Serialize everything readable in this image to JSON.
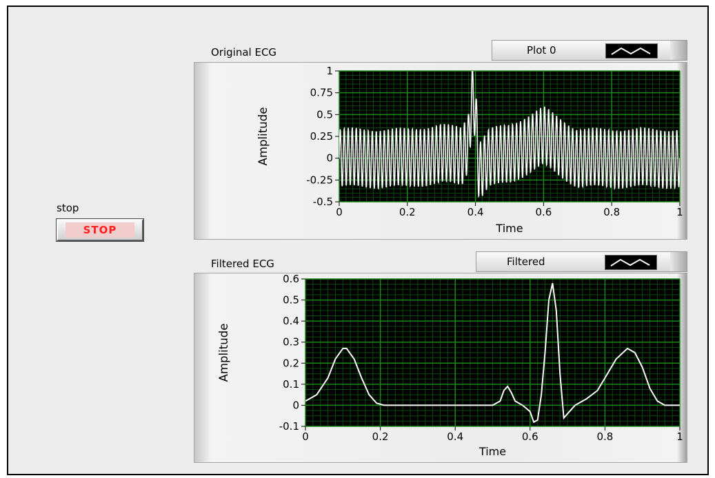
{
  "stop": {
    "label": "stop",
    "button_text": "STOP"
  },
  "charts": [
    {
      "title": "Original ECG",
      "legend": "Plot 0"
    },
    {
      "title": "Filtered ECG",
      "legend": "Filtered"
    }
  ],
  "colors": {
    "plot_background": "#000000",
    "grid_major": "#1a8a1a",
    "grid_minor": "#0d4a0d",
    "trace": "#ffffff",
    "stop_text": "#ff2020"
  },
  "chart_data": [
    {
      "type": "line",
      "title": "Original ECG",
      "xlabel": "Time",
      "ylabel": "Amplitude",
      "xlim": [
        0,
        1
      ],
      "ylim": [
        -0.5,
        1
      ],
      "x_ticks": [
        "0",
        "0.2",
        "0.4",
        "0.6",
        "0.8",
        "1"
      ],
      "y_ticks": [
        "1",
        "0.75",
        "0.5",
        "0.25",
        "0",
        "-0.25",
        "-0.5"
      ],
      "grid": true,
      "series": [
        {
          "name": "Plot 0",
          "description_points": {
            "x": [
              0,
              0.1,
              0.2,
              0.3,
              0.36,
              0.38,
              0.39,
              0.4,
              0.41,
              0.44,
              0.5,
              0.55,
              0.6,
              0.65,
              0.7,
              0.8,
              0.9,
              1.0
            ],
            "y": [
              0,
              0.0,
              0.0,
              0.05,
              0.02,
              0.2,
              0.75,
              0.55,
              -0.15,
              0.0,
              0.05,
              0.15,
              0.25,
              0.12,
              0.0,
              0.0,
              0.0,
              0.0
            ]
          },
          "noise_amplitude": 0.33,
          "noise_cycles": 85
        }
      ]
    },
    {
      "type": "line",
      "title": "Filtered ECG",
      "xlabel": "Time",
      "ylabel": "Amplitude",
      "xlim": [
        0,
        1
      ],
      "ylim": [
        -0.1,
        0.6
      ],
      "x_ticks": [
        "0",
        "0.2",
        "0.4",
        "0.6",
        "0.8",
        "1"
      ],
      "y_ticks": [
        "0.6",
        "0.5",
        "0.4",
        "0.3",
        "0.2",
        "0.1",
        "0",
        "-0.1"
      ],
      "grid": true,
      "series": [
        {
          "name": "Filtered",
          "x": [
            0,
            0.03,
            0.06,
            0.08,
            0.1,
            0.11,
            0.13,
            0.15,
            0.17,
            0.19,
            0.21,
            0.25,
            0.3,
            0.4,
            0.5,
            0.52,
            0.53,
            0.54,
            0.55,
            0.56,
            0.58,
            0.6,
            0.61,
            0.62,
            0.63,
            0.64,
            0.65,
            0.66,
            0.67,
            0.68,
            0.69,
            0.7,
            0.72,
            0.75,
            0.78,
            0.8,
            0.83,
            0.86,
            0.88,
            0.9,
            0.92,
            0.94,
            0.96,
            1.0
          ],
          "y": [
            0.02,
            0.05,
            0.13,
            0.22,
            0.27,
            0.27,
            0.22,
            0.13,
            0.05,
            0.01,
            0.0,
            0.0,
            0.0,
            0.0,
            0.0,
            0.02,
            0.07,
            0.09,
            0.06,
            0.02,
            0.0,
            -0.03,
            -0.08,
            -0.07,
            0.05,
            0.25,
            0.5,
            0.58,
            0.45,
            0.15,
            -0.06,
            -0.04,
            0.0,
            0.03,
            0.07,
            0.13,
            0.22,
            0.27,
            0.25,
            0.18,
            0.08,
            0.02,
            0.0,
            0.0
          ]
        }
      ]
    }
  ]
}
